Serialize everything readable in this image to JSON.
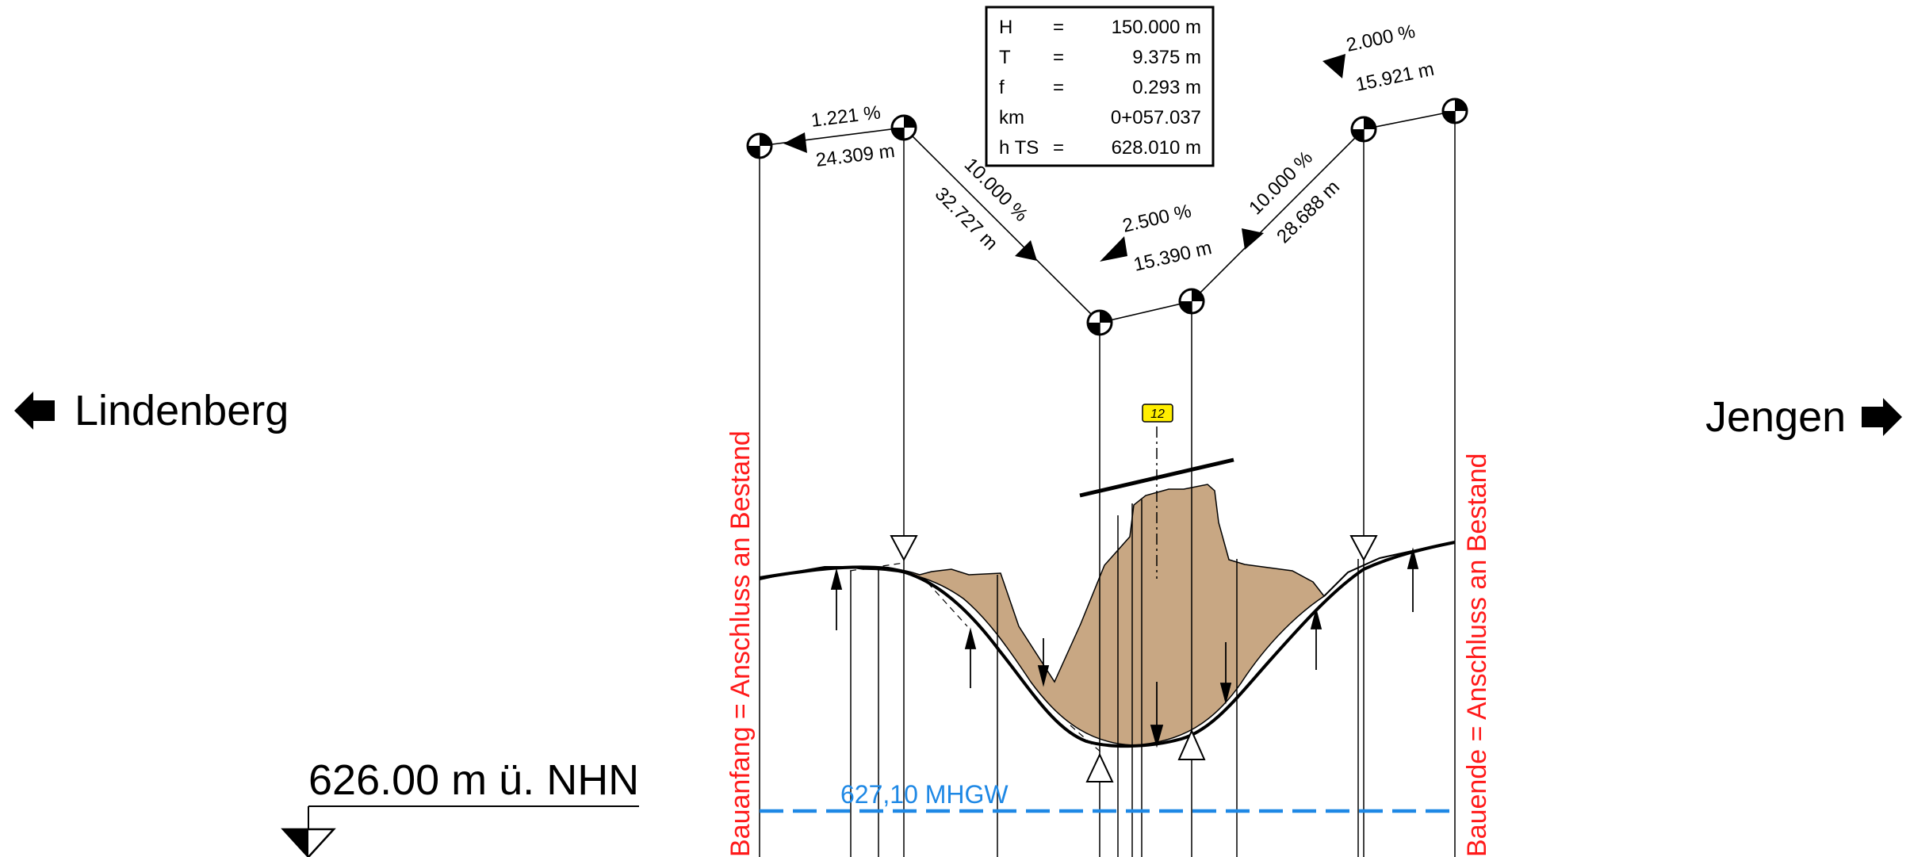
{
  "directions": {
    "left": "Lindenberg",
    "right": "Jengen"
  },
  "reference_level": "626.00 m ü. NHN",
  "water_level": "627,10 MHGW",
  "marker": "12",
  "construction": {
    "start": "Bauanfang = Anschluss an Bestand",
    "end": "Bauende = Anschluss an Bestand"
  },
  "curve_params": [
    {
      "key": "H",
      "eq": "=",
      "value": "150.000 m"
    },
    {
      "key": "T",
      "eq": "=",
      "value": "9.375 m"
    },
    {
      "key": "f",
      "eq": "=",
      "value": "0.293 m"
    },
    {
      "key": "km",
      "eq": "",
      "value": "0+057.037"
    },
    {
      "key": "h TS",
      "eq": "=",
      "value": "628.010 m"
    }
  ],
  "segments": [
    {
      "grade": "1.221 %",
      "length": "24.309 m"
    },
    {
      "grade": "10.000 %",
      "length": "32.727 m"
    },
    {
      "grade": "2.500 %",
      "length": "15.390 m"
    },
    {
      "grade": "10.000 %",
      "length": "28.688 m"
    },
    {
      "grade": "2.000 %",
      "length": "15.921 m"
    }
  ],
  "colors": {
    "fill": "#c8a783",
    "red": "#ff1a1a",
    "blue": "#1e88e5",
    "marker": "#ffee00"
  }
}
